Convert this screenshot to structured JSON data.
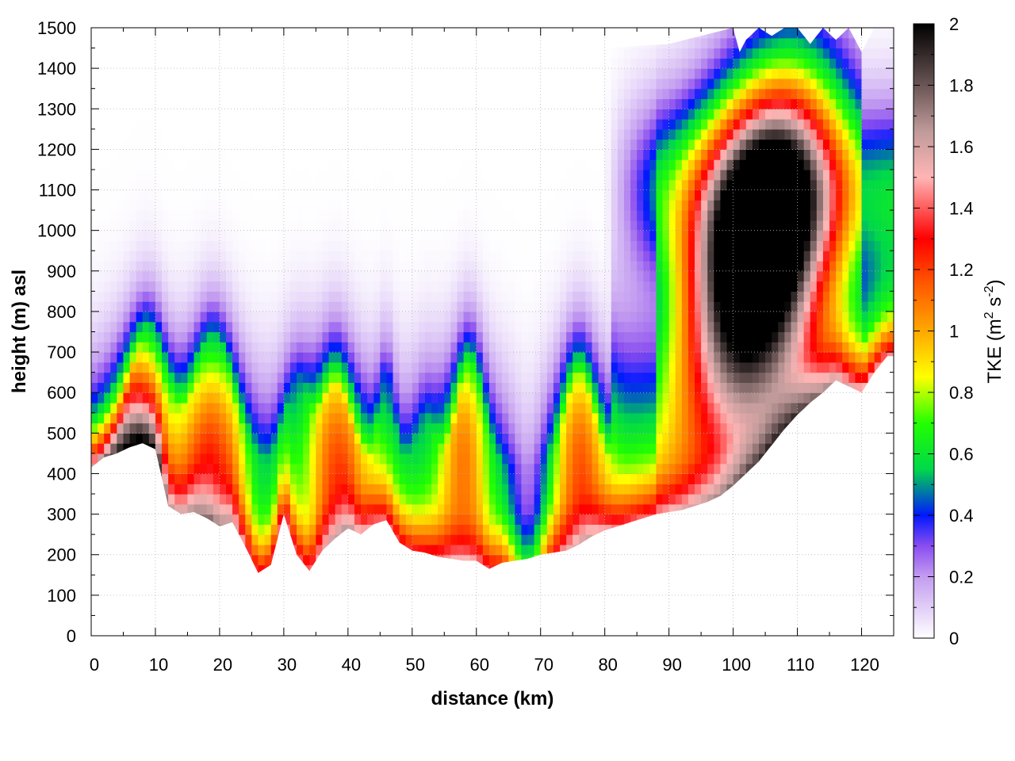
{
  "chart_data": {
    "type": "heatmap",
    "title": "",
    "xlabel": "distance (km)",
    "ylabel": "height (m) asl",
    "colorbar_label_base": "TKE (m",
    "colorbar_label_exp1": "2",
    "colorbar_label_mid": " s",
    "colorbar_label_exp2": "-2",
    "colorbar_label_end": ")",
    "xlim": [
      0,
      125
    ],
    "ylim": [
      0,
      1500
    ],
    "zlim": [
      0,
      2
    ],
    "grid": true,
    "x_ticks": [
      "0",
      "10",
      "20",
      "30",
      "40",
      "50",
      "60",
      "70",
      "80",
      "90",
      "100",
      "110",
      "120"
    ],
    "y_ticks": [
      "0",
      "100",
      "200",
      "300",
      "400",
      "500",
      "600",
      "700",
      "800",
      "900",
      "1000",
      "1100",
      "1200",
      "1300",
      "1400",
      "1500"
    ],
    "colorbar_ticks": [
      "0",
      "0.2",
      "0.4",
      "0.6",
      "0.8",
      "1",
      "1.2",
      "1.4",
      "1.6",
      "1.8",
      "2"
    ],
    "colormap": [
      {
        "v": 0.0,
        "color": "#ffffff"
      },
      {
        "v": 0.2,
        "color": "#c39cf0"
      },
      {
        "v": 0.3,
        "color": "#8a4df0"
      },
      {
        "v": 0.4,
        "color": "#0018ff"
      },
      {
        "v": 0.55,
        "color": "#00d84a"
      },
      {
        "v": 0.7,
        "color": "#22ff00"
      },
      {
        "v": 0.85,
        "color": "#ffff00"
      },
      {
        "v": 1.0,
        "color": "#ffa800"
      },
      {
        "v": 1.15,
        "color": "#ff5a00"
      },
      {
        "v": 1.3,
        "color": "#ff0000"
      },
      {
        "v": 1.5,
        "color": "#ffb5b5"
      },
      {
        "v": 1.65,
        "color": "#c09a9a"
      },
      {
        "v": 1.8,
        "color": "#6a5555"
      },
      {
        "v": 2.0,
        "color": "#000000"
      }
    ],
    "terrain_km": [
      0,
      2,
      4,
      6,
      8,
      10,
      12,
      14,
      16,
      18,
      20,
      22,
      24,
      26,
      28,
      30,
      32,
      34,
      36,
      38,
      40,
      42,
      44,
      46,
      48,
      50,
      52,
      54,
      56,
      58,
      60,
      62,
      64,
      66,
      68,
      70,
      72,
      74,
      76,
      78,
      80,
      82,
      84,
      86,
      88,
      90,
      92,
      94,
      96,
      98,
      100,
      102,
      104,
      106,
      108,
      110,
      112,
      114,
      116,
      118,
      120,
      122,
      124
    ],
    "terrain_height": [
      415,
      440,
      450,
      465,
      475,
      460,
      320,
      300,
      305,
      290,
      270,
      280,
      220,
      155,
      175,
      300,
      200,
      160,
      210,
      240,
      265,
      250,
      275,
      285,
      230,
      210,
      205,
      195,
      190,
      185,
      185,
      165,
      180,
      185,
      190,
      200,
      205,
      210,
      225,
      245,
      260,
      270,
      280,
      290,
      300,
      305,
      310,
      320,
      330,
      345,
      370,
      400,
      430,
      470,
      510,
      545,
      575,
      600,
      630,
      615,
      600,
      650,
      690
    ],
    "top_km": [
      0,
      10,
      20,
      30,
      40,
      50,
      60,
      70,
      80,
      90,
      100,
      101,
      102,
      104,
      106,
      108,
      110,
      112,
      114,
      116,
      118,
      120,
      122,
      124
    ],
    "top_height": [
      1440,
      1470,
      1440,
      1420,
      1430,
      1440,
      1450,
      1450,
      1450,
      1460,
      1500,
      1440,
      1470,
      1500,
      1480,
      1500,
      1500,
      1460,
      1500,
      1470,
      1500,
      1440,
      1500,
      1500
    ]
  }
}
